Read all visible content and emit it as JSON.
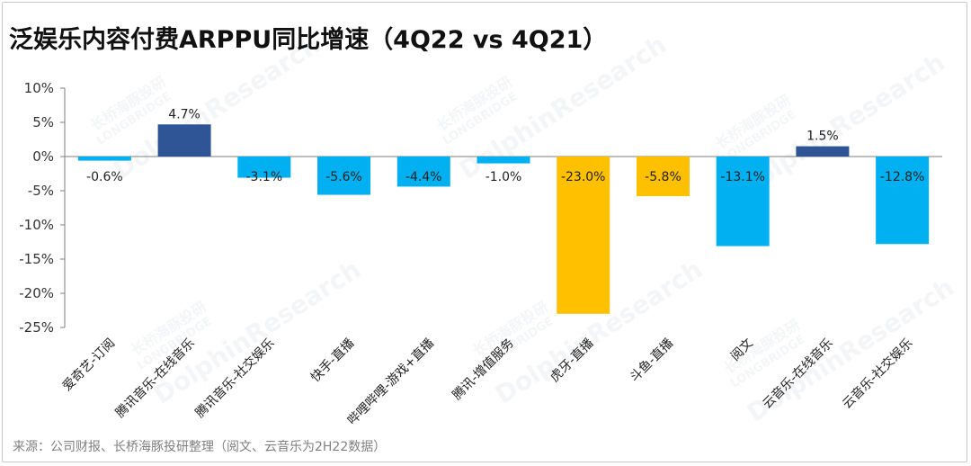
{
  "title": "泛娱乐内容付费ARPPU同比增速（4Q22 vs 4Q21）",
  "source": "来源：公司财报、长桥海豚投研整理（阅文、云音乐为2H22数据）",
  "watermarks": [
    "长桥海豚投研",
    "LONGBRIDGE",
    "DolphinResearch"
  ],
  "chart_data": {
    "type": "bar",
    "title": "泛娱乐内容付费ARPPU同比增速（4Q22 vs 4Q21）",
    "xlabel": "",
    "ylabel": "",
    "ylim": [
      -25,
      10
    ],
    "yticks": [
      "10%",
      "5%",
      "0%",
      "-5%",
      "-10%",
      "-15%",
      "-20%",
      "-25%"
    ],
    "ytick_values": [
      10,
      5,
      0,
      -5,
      -10,
      -15,
      -20,
      -25
    ],
    "categories": [
      "爱奇艺-订阅",
      "腾讯音乐-在线音乐",
      "腾讯音乐-社交娱乐",
      "快手-直播",
      "哔哩哔哩-游戏+直播",
      "腾讯-增值服务",
      "虎牙-直播",
      "斗鱼-直播",
      "阅文",
      "云音乐-在线音乐",
      "云音乐-社交娱乐"
    ],
    "values": [
      -0.6,
      4.7,
      -3.1,
      -5.6,
      -4.4,
      -1.0,
      -23.0,
      -5.8,
      -13.1,
      1.5,
      -12.8
    ],
    "labels": [
      "-0.6%",
      "4.7%",
      "-3.1%",
      "-5.6%",
      "-4.4%",
      "-1.0%",
      "-23.0%",
      "-5.8%",
      "-13.1%",
      "1.5%",
      "-12.8%"
    ],
    "colors": [
      "#00b0f0",
      "#2f5597",
      "#00b0f0",
      "#00b0f0",
      "#00b0f0",
      "#00b0f0",
      "#ffc000",
      "#ffc000",
      "#00b0f0",
      "#2f5597",
      "#00b0f0"
    ],
    "grid": false
  }
}
